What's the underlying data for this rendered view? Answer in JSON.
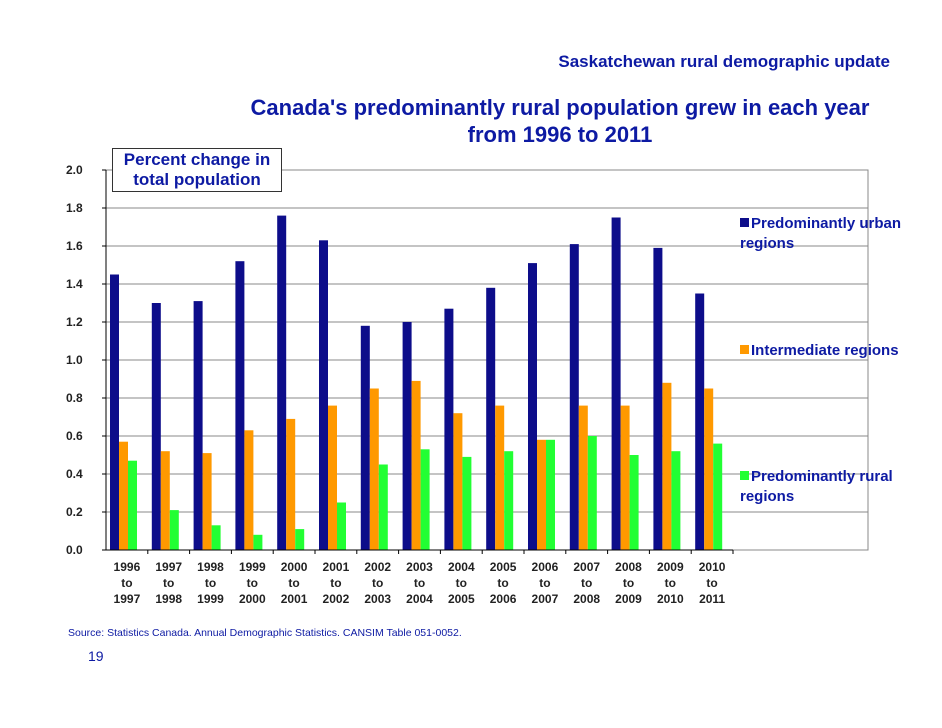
{
  "header": {
    "title": "Saskatchewan rural demographic update"
  },
  "page_number": "19",
  "source": "Source: Statistics Canada. Annual Demographic Statistics. CANSIM Table 051-0052.",
  "colors": {
    "urban": "#0d0d8a",
    "intermediate": "#ff9900",
    "rural": "#22ff33",
    "text": "#0d1aa3"
  },
  "chart_data": {
    "type": "bar",
    "title": "Canada's predominantly rural population grew in each year from 1996 to 2011",
    "ylabel": "Percent change in total population",
    "xlabel": "",
    "ylim": [
      0,
      2.0
    ],
    "yticks": [
      "0.0",
      "0.2",
      "0.4",
      "0.6",
      "0.8",
      "1.0",
      "1.2",
      "1.4",
      "1.6",
      "1.8",
      "2.0"
    ],
    "grid": true,
    "legend_position": "right",
    "categories": [
      [
        "1996",
        "to",
        "1997"
      ],
      [
        "1997",
        "to",
        "1998"
      ],
      [
        "1998",
        "to",
        "1999"
      ],
      [
        "1999",
        "to",
        "2000"
      ],
      [
        "2000",
        "to",
        "2001"
      ],
      [
        "2001",
        "to",
        "2002"
      ],
      [
        "2002",
        "to",
        "2003"
      ],
      [
        "2003",
        "to",
        "2004"
      ],
      [
        "2004",
        "to",
        "2005"
      ],
      [
        "2005",
        "to",
        "2006"
      ],
      [
        "2006",
        "to",
        "2007"
      ],
      [
        "2007",
        "to",
        "2008"
      ],
      [
        "2008",
        "to",
        "2009"
      ],
      [
        "2009",
        "to",
        "2010"
      ],
      [
        "2010",
        "to",
        "2011"
      ]
    ],
    "series": [
      {
        "name": "Predominantly urban regions",
        "color": "#0d0d8a",
        "values": [
          1.45,
          1.3,
          1.31,
          1.52,
          1.76,
          1.63,
          1.18,
          1.2,
          1.27,
          1.38,
          1.51,
          1.61,
          1.75,
          1.59,
          1.35
        ]
      },
      {
        "name": "Intermediate regions",
        "color": "#ff9900",
        "values": [
          0.57,
          0.52,
          0.51,
          0.63,
          0.69,
          0.76,
          0.85,
          0.89,
          0.72,
          0.76,
          0.58,
          0.76,
          0.76,
          0.88,
          0.85
        ]
      },
      {
        "name": "Predominantly rural regions",
        "color": "#22ff33",
        "values": [
          0.47,
          0.21,
          0.13,
          0.08,
          0.11,
          0.25,
          0.45,
          0.53,
          0.49,
          0.52,
          0.58,
          0.6,
          0.5,
          0.52,
          0.56
        ]
      }
    ]
  }
}
